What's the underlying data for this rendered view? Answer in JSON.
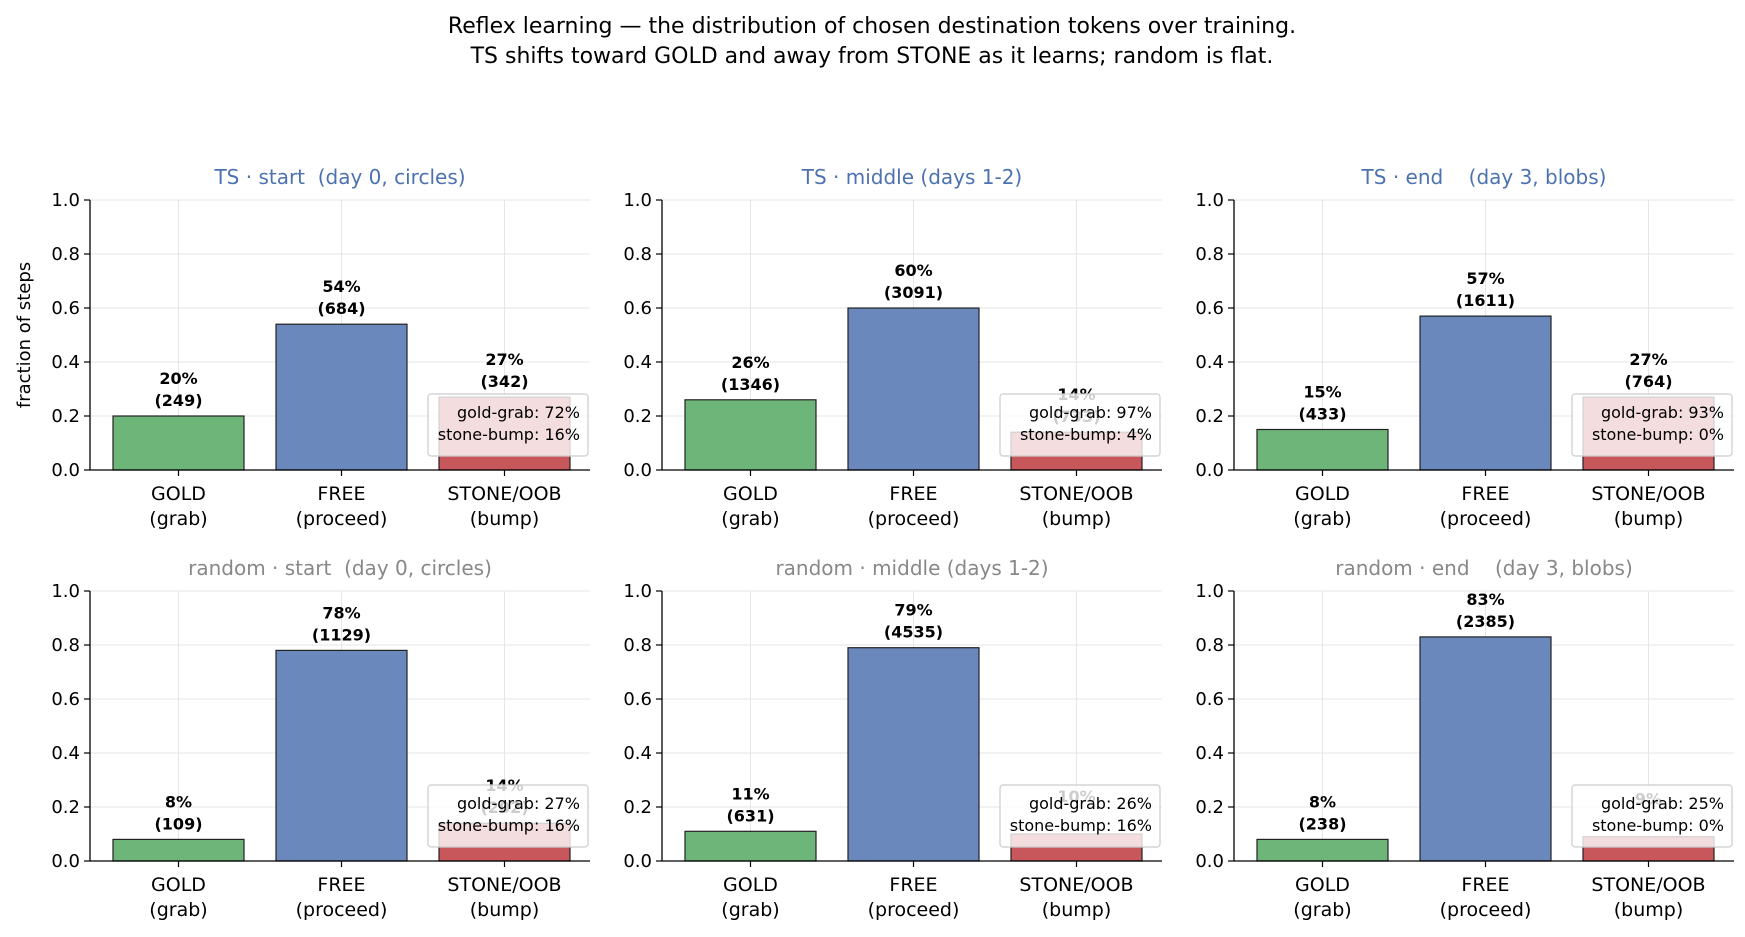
{
  "figure": {
    "title_line1": "Reflex learning — the distribution of chosen destination tokens over training.",
    "title_line2": "TS shifts toward GOLD and away from STONE as it learns; random is flat."
  },
  "colors": {
    "gold": "#6db578",
    "free": "#6a88bc",
    "stone": "#c8575b",
    "ts_title": "#4c72b0",
    "random_title": "#888888",
    "grid": "#e6e6e6",
    "legend_border": "#cccccc"
  },
  "chart_data": [
    {
      "type": "bar",
      "title": "TS · start  (day 0, circles)",
      "title_style": "ts",
      "categories": [
        "GOLD\n(grab)",
        "FREE\n(proceed)",
        "STONE/OOB\n(bump)"
      ],
      "values": [
        0.2,
        0.54,
        0.27
      ],
      "labels": [
        [
          "20%",
          "(249)"
        ],
        [
          "54%",
          "(684)"
        ],
        [
          "27%",
          "(342)"
        ]
      ],
      "ylabel": "fraction of steps",
      "ylim": [
        0,
        1
      ],
      "yticks": [
        "0.0",
        "0.2",
        "0.4",
        "0.6",
        "0.8",
        "1.0"
      ],
      "grid": true,
      "legend": [
        "gold-grab: 72%",
        "stone-bump: 16%"
      ],
      "legend_position": "lower-right"
    },
    {
      "type": "bar",
      "title": "TS · middle (days 1-2)",
      "title_style": "ts",
      "categories": [
        "GOLD\n(grab)",
        "FREE\n(proceed)",
        "STONE/OOB\n(bump)"
      ],
      "values": [
        0.26,
        0.6,
        0.14
      ],
      "labels": [
        [
          "26%",
          "(1346)"
        ],
        [
          "60%",
          "(3091)"
        ],
        [
          "14%",
          "(733)"
        ]
      ],
      "ylabel": "",
      "ylim": [
        0,
        1
      ],
      "yticks": [
        "0.0",
        "0.2",
        "0.4",
        "0.6",
        "0.8",
        "1.0"
      ],
      "grid": true,
      "legend": [
        "gold-grab: 97%",
        "stone-bump: 4%"
      ],
      "legend_position": "lower-right"
    },
    {
      "type": "bar",
      "title": "TS · end    (day 3, blobs)",
      "title_style": "ts",
      "categories": [
        "GOLD\n(grab)",
        "FREE\n(proceed)",
        "STONE/OOB\n(bump)"
      ],
      "values": [
        0.15,
        0.57,
        0.27
      ],
      "labels": [
        [
          "15%",
          "(433)"
        ],
        [
          "57%",
          "(1611)"
        ],
        [
          "27%",
          "(764)"
        ]
      ],
      "ylabel": "",
      "ylim": [
        0,
        1
      ],
      "yticks": [
        "0.0",
        "0.2",
        "0.4",
        "0.6",
        "0.8",
        "1.0"
      ],
      "grid": true,
      "legend": [
        "gold-grab: 93%",
        "stone-bump: 0%"
      ],
      "legend_position": "lower-right"
    },
    {
      "type": "bar",
      "title": "random · start  (day 0, circles)",
      "title_style": "random",
      "categories": [
        "GOLD\n(grab)",
        "FREE\n(proceed)",
        "STONE/OOB\n(bump)"
      ],
      "values": [
        0.08,
        0.78,
        0.14
      ],
      "labels": [
        [
          "8%",
          "(109)"
        ],
        [
          "78%",
          "(1129)"
        ],
        [
          "14%",
          "(202)"
        ]
      ],
      "ylabel": "",
      "ylim": [
        0,
        1
      ],
      "yticks": [
        "0.0",
        "0.2",
        "0.4",
        "0.6",
        "0.8",
        "1.0"
      ],
      "grid": true,
      "legend": [
        "gold-grab: 27%",
        "stone-bump: 16%"
      ],
      "legend_position": "lower-right"
    },
    {
      "type": "bar",
      "title": "random · middle (days 1-2)",
      "title_style": "random",
      "categories": [
        "GOLD\n(grab)",
        "FREE\n(proceed)",
        "STONE/OOB\n(bump)"
      ],
      "values": [
        0.11,
        0.79,
        0.1
      ],
      "labels": [
        [
          "11%",
          "(631)"
        ],
        [
          "79%",
          "(4535)"
        ],
        [
          "10%",
          ""
        ]
      ],
      "ylabel": "",
      "ylim": [
        0,
        1
      ],
      "yticks": [
        "0.0",
        "0.2",
        "0.4",
        "0.6",
        "0.8",
        "1.0"
      ],
      "grid": true,
      "legend": [
        "gold-grab: 26%",
        "stone-bump: 16%"
      ],
      "legend_position": "lower-right"
    },
    {
      "type": "bar",
      "title": "random · end    (day 3, blobs)",
      "title_style": "random",
      "categories": [
        "GOLD\n(grab)",
        "FREE\n(proceed)",
        "STONE/OOB\n(bump)"
      ],
      "values": [
        0.08,
        0.83,
        0.09
      ],
      "labels": [
        [
          "8%",
          "(238)"
        ],
        [
          "83%",
          "(2385)"
        ],
        [
          "9%",
          ""
        ]
      ],
      "ylabel": "",
      "ylim": [
        0,
        1
      ],
      "yticks": [
        "0.0",
        "0.2",
        "0.4",
        "0.6",
        "0.8",
        "1.0"
      ],
      "grid": true,
      "legend": [
        "gold-grab: 25%",
        "stone-bump: 0%"
      ],
      "legend_position": "lower-right"
    }
  ]
}
